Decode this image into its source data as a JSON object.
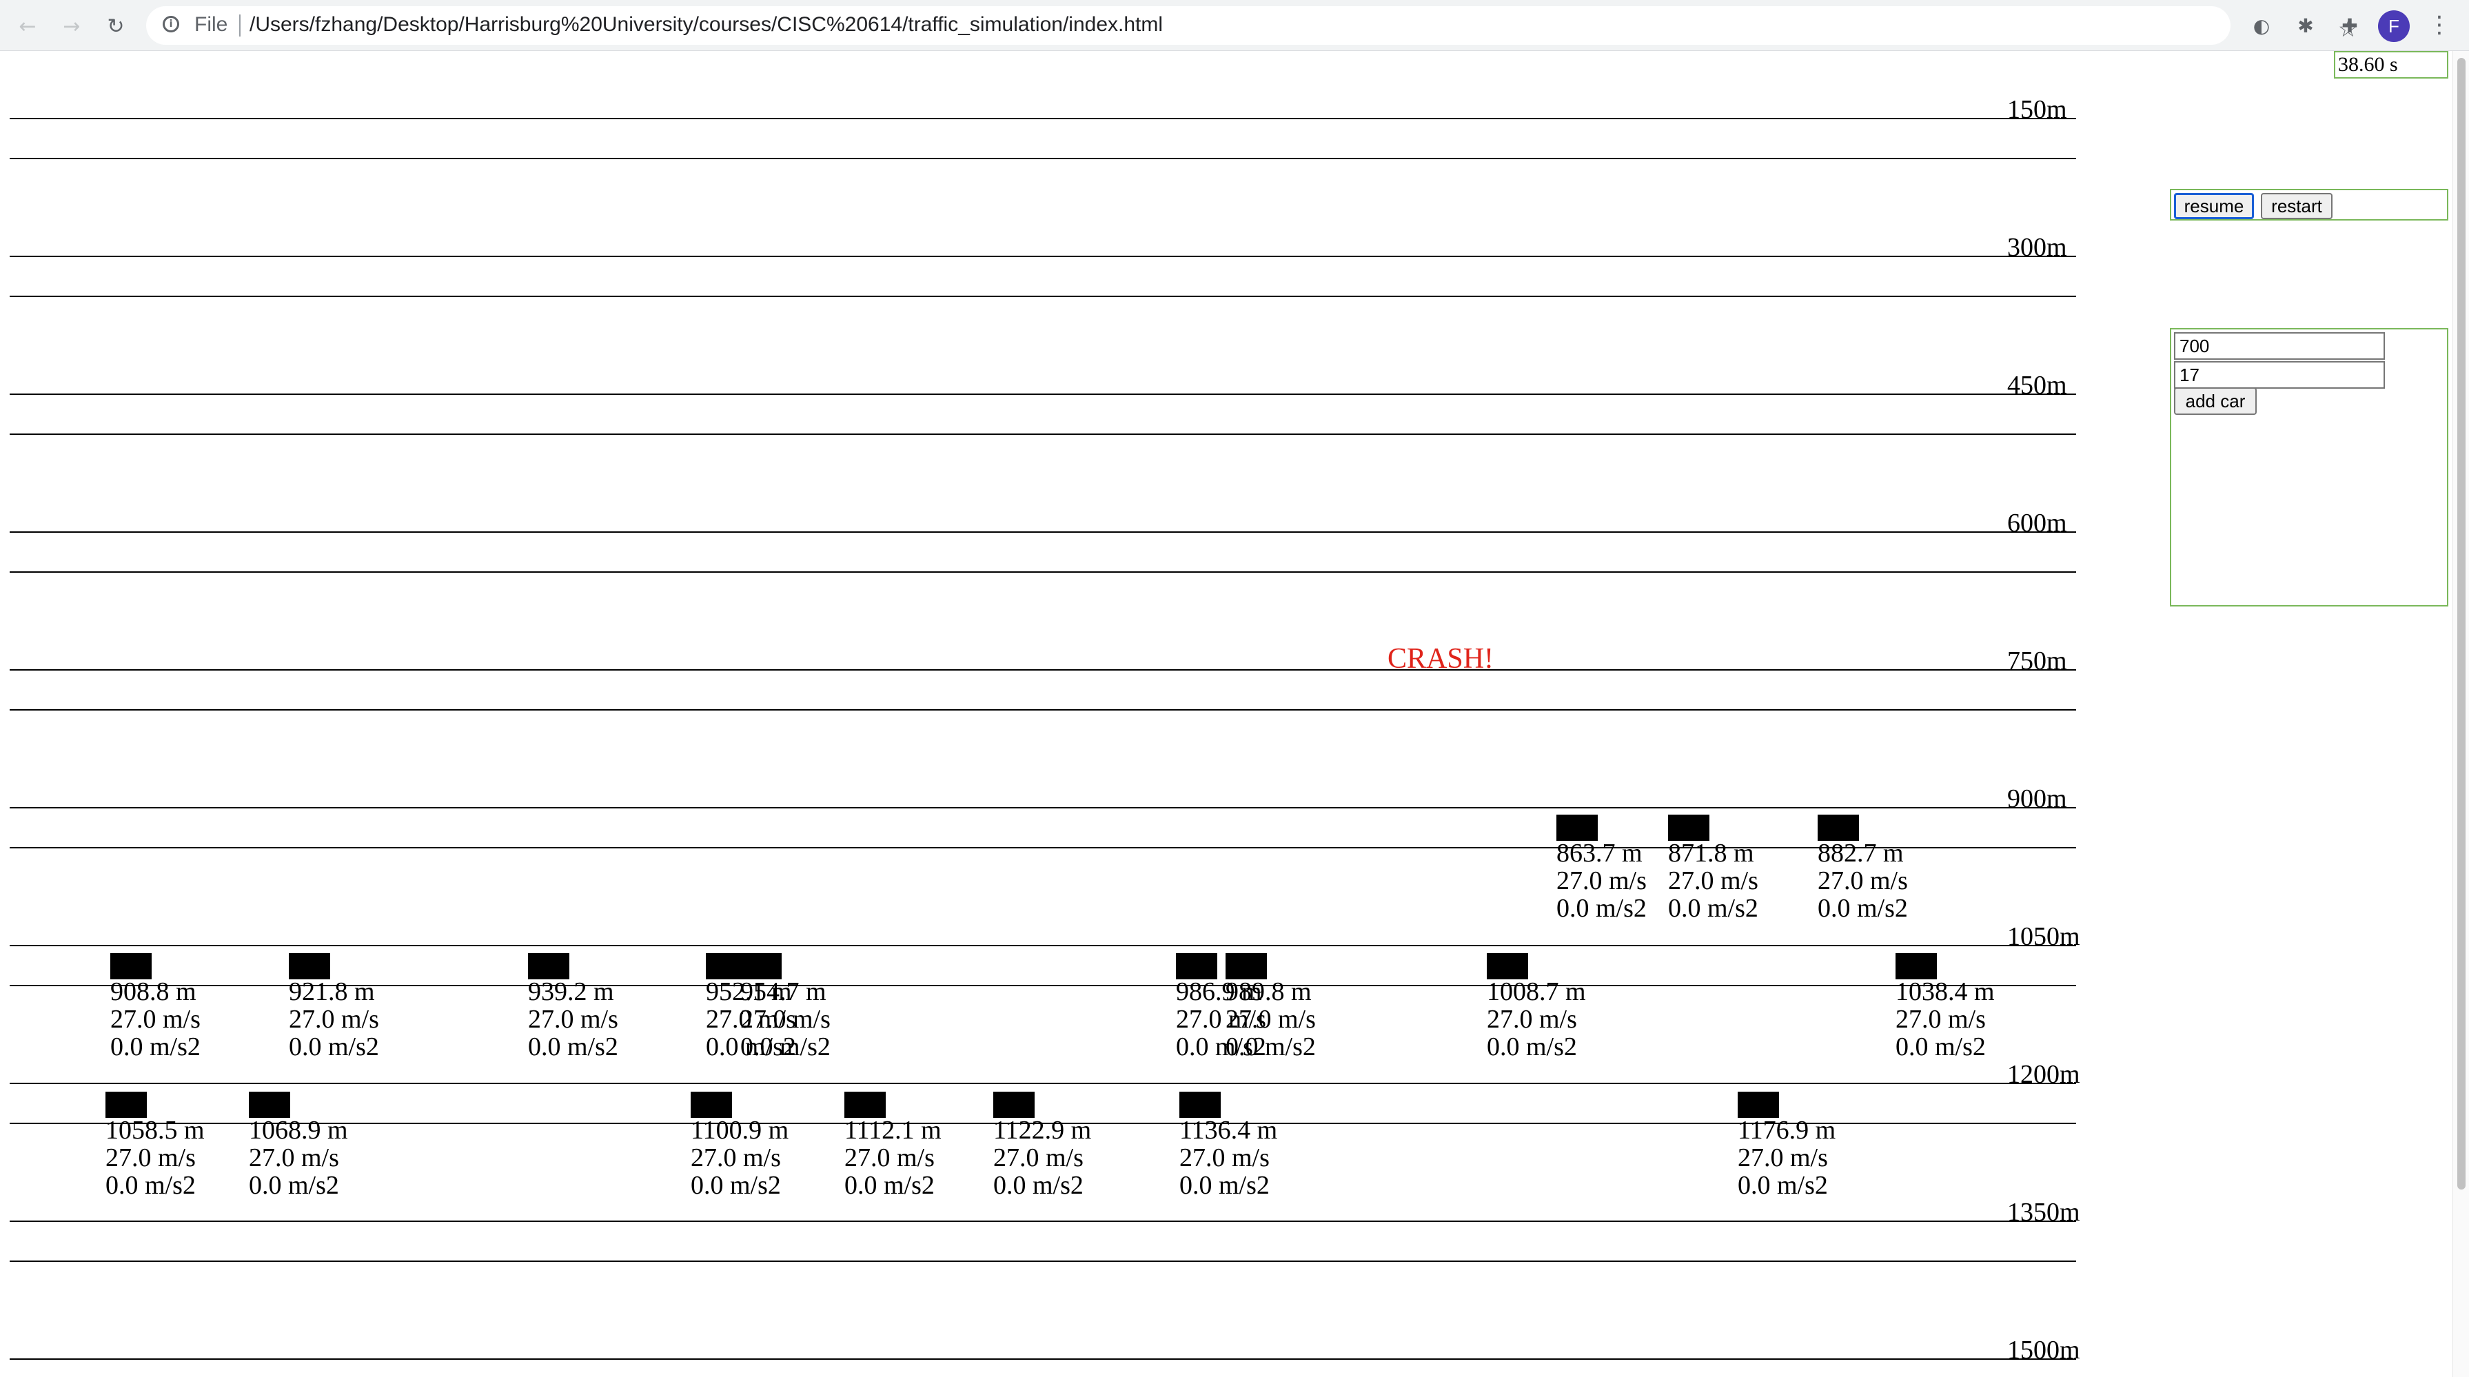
{
  "browser": {
    "scheme": "File",
    "url": "/Users/fzhang/Desktop/Harrisburg%20University/courses/CISC%20614/traffic_simulation/index.html",
    "avatar_initial": "F",
    "icons": [
      "back-arrow-icon",
      "forward-arrow-icon",
      "reload-icon",
      "info-icon",
      "star-icon",
      "extension-circle-icon",
      "extension-puzzle-icon",
      "puzzle-icon",
      "menu-kebab-icon"
    ]
  },
  "simulation": {
    "clock": "38.60 s",
    "crash_text": "CRASH!",
    "road_markers": [
      "150m",
      "300m",
      "450m",
      "600m",
      "750m",
      "900m",
      "1050m",
      "1200m",
      "1350m",
      "1500m"
    ],
    "cars": [
      {
        "position": "863.7 m",
        "speed": "27.0 m/s",
        "accel": "0.0 m/s2"
      },
      {
        "position": "871.8 m",
        "speed": "27.0 m/s",
        "accel": "0.0 m/s2"
      },
      {
        "position": "882.7 m",
        "speed": "27.0 m/s",
        "accel": "0.0 m/s2"
      },
      {
        "position": "908.8 m",
        "speed": "27.0 m/s",
        "accel": "0.0 m/s2"
      },
      {
        "position": "921.8 m",
        "speed": "27.0 m/s",
        "accel": "0.0 m/s2"
      },
      {
        "position": "939.2 m",
        "speed": "27.0 m/s",
        "accel": "0.0 m/s2"
      },
      {
        "position": "952.1 m",
        "speed": "27.0 m/s",
        "accel": "0.0 m/s2"
      },
      {
        "position": "954.7 m",
        "speed": "27.0 m/s",
        "accel": "0.0 m/s2"
      },
      {
        "position": "986.9 m",
        "speed": "27.0 m/s",
        "accel": "0.0 m/s2"
      },
      {
        "position": "989.8 m",
        "speed": "27.0 m/s",
        "accel": "0.0 m/s2"
      },
      {
        "position": "1008.7 m",
        "speed": "27.0 m/s",
        "accel": "0.0 m/s2"
      },
      {
        "position": "1038.4 m",
        "speed": "27.0 m/s",
        "accel": "0.0 m/s2"
      },
      {
        "position": "1058.5 m",
        "speed": "27.0 m/s",
        "accel": "0.0 m/s2"
      },
      {
        "position": "1068.9 m",
        "speed": "27.0 m/s",
        "accel": "0.0 m/s2"
      },
      {
        "position": "1100.9 m",
        "speed": "27.0 m/s",
        "accel": "0.0 m/s2"
      },
      {
        "position": "1112.1 m",
        "speed": "27.0 m/s",
        "accel": "0.0 m/s2"
      },
      {
        "position": "1122.9 m",
        "speed": "27.0 m/s",
        "accel": "0.0 m/s2"
      },
      {
        "position": "1136.4 m",
        "speed": "27.0 m/s",
        "accel": "0.0 m/s2"
      },
      {
        "position": "1176.9 m",
        "speed": "27.0 m/s",
        "accel": "0.0 m/s2"
      }
    ]
  },
  "controls": {
    "resume_label": "resume",
    "restart_label": "restart",
    "position_value": "700",
    "speed_value": "17",
    "add_car_label": "add car"
  },
  "colors": {
    "crash": "#e0241b",
    "panel_border": "#7ab85a",
    "avatar": "#4b3bb7"
  }
}
